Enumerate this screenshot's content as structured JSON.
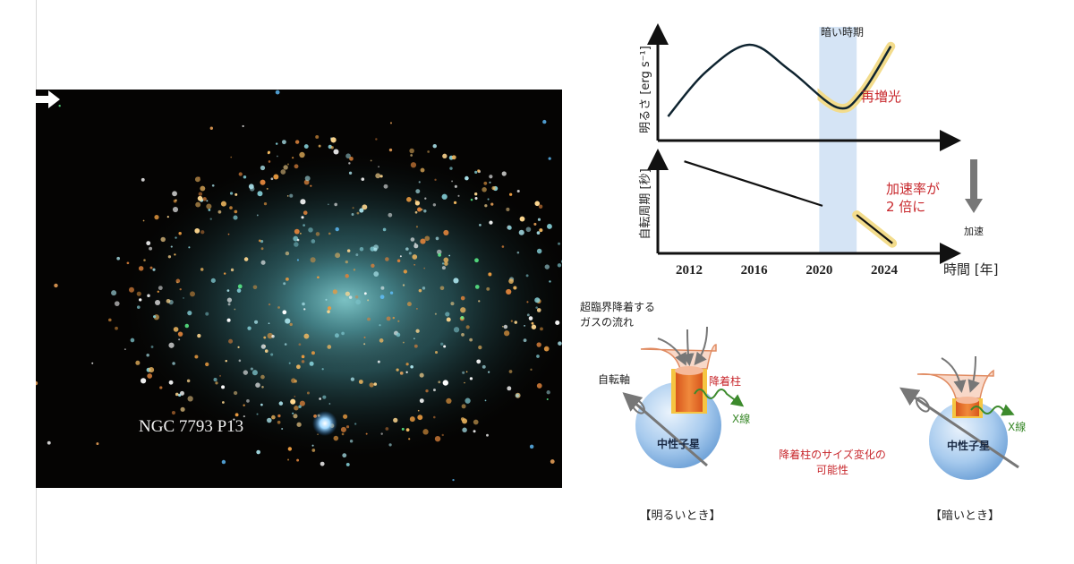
{
  "galaxy": {
    "label": "NGC 7793 P13",
    "arrow_icon": "right-arrow-icon"
  },
  "chart_data": [
    {
      "type": "line",
      "ylabel": "明るさ [erg s⁻¹]",
      "x_range": [
        2010,
        2026
      ],
      "y_range": [
        0,
        1
      ],
      "series": [
        {
          "name": "luminosity",
          "points": [
            [
              2010.7,
              0.24
            ],
            [
              2013,
              0.68
            ],
            [
              2015.7,
              0.955
            ],
            [
              2018.2,
              0.7
            ],
            [
              2021.1,
              0.33
            ],
            [
              2022.6,
              0.47
            ],
            [
              2024.4,
              0.94
            ]
          ],
          "highlight_from": 2019.9
        }
      ],
      "shaded_band": {
        "from": 2020,
        "to": 2022.3,
        "label": "暗い時期"
      },
      "annotation": "再増光"
    },
    {
      "type": "line",
      "ylabel": "自転周期 [秒]",
      "x_range": [
        2010,
        2026
      ],
      "y_range": [
        0,
        1
      ],
      "series": [
        {
          "name": "period-before",
          "points": [
            [
              2011.7,
              0.91
            ],
            [
              2020.2,
              0.47
            ]
          ]
        },
        {
          "name": "period-after",
          "points": [
            [
              2022.3,
              0.38
            ],
            [
              2024.5,
              0.1
            ]
          ],
          "highlighted": true
        }
      ],
      "annotation": [
        "加速率が",
        "2 倍に"
      ],
      "side_arrow_label": "加速",
      "xticks": [
        "2012",
        "2016",
        "2020",
        "2024"
      ],
      "xtick_values": [
        2012,
        2016,
        2020,
        2024
      ],
      "xlabel": "時間 [年]"
    }
  ],
  "diagram": {
    "gas_flow": [
      "超臨界降着する",
      "ガスの流れ"
    ],
    "spin_axis": "自転軸",
    "column": "降着柱",
    "xray": "X線",
    "neutron_star": "中性子星",
    "middle_note": [
      "降着柱のサイズ変化の",
      "可能性"
    ],
    "bright_caption": "【明るいとき】",
    "dark_caption": "【暗いとき】"
  },
  "colors": {
    "accent_red": "#c8282d",
    "band": "#d5e4f5",
    "glow": "#f3dc8c",
    "xray_green": "#3c8a2c"
  }
}
